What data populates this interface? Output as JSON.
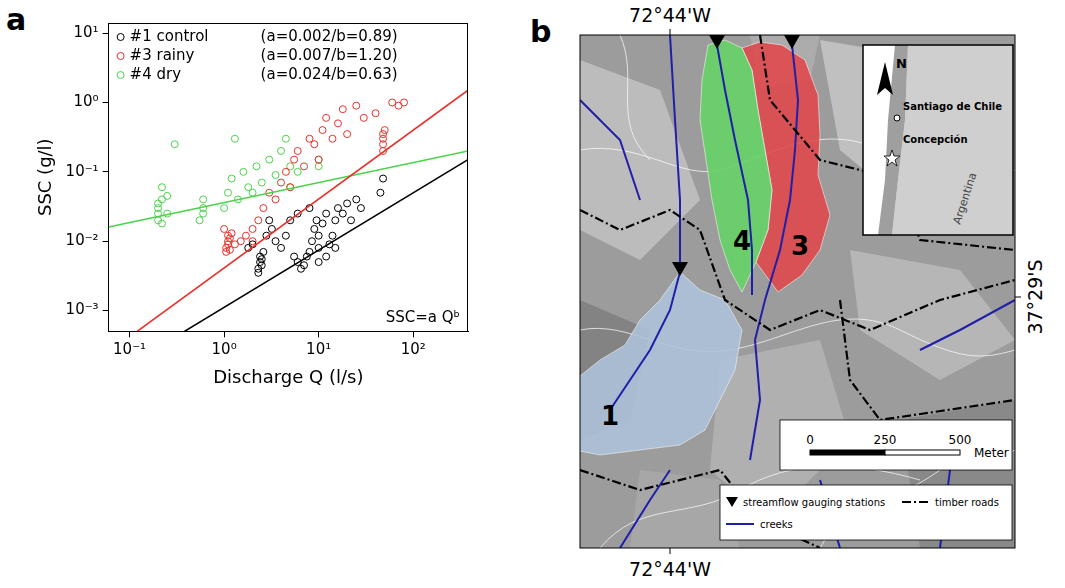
{
  "chart_data": {
    "type": "scatter",
    "panel_label": "a",
    "x_label": "Discharge Q (l/s)",
    "y_label": "SSC (g/l)",
    "log": true,
    "grid": false,
    "legend": "upper left",
    "annotation": "SSC=a Qᵇ",
    "xlim": [
      0.06,
      380
    ],
    "ylim": [
      0.0005,
      14
    ],
    "xticks": [
      {
        "value": 0.1,
        "label": "10⁻¹"
      },
      {
        "value": 1,
        "label": "10⁰"
      },
      {
        "value": 10,
        "label": "10¹"
      },
      {
        "value": 100,
        "label": "10²"
      }
    ],
    "yticks": [
      {
        "value": 0.001,
        "label": "10⁻³"
      },
      {
        "value": 0.01,
        "label": "10⁻²"
      },
      {
        "value": 0.1,
        "label": "10⁻¹"
      },
      {
        "value": 1,
        "label": "10⁰"
      },
      {
        "value": 10,
        "label": "10¹"
      }
    ],
    "series": [
      {
        "name": "#1 control",
        "fit_label": "(a=0.002/b=0.89)",
        "color": "#000000",
        "marker": "circle",
        "x": [
          2.3,
          2.4,
          2.4,
          2.5,
          2.5,
          2.6,
          2.3,
          2.0,
          2.8,
          3.2,
          3.5,
          4,
          4.5,
          5,
          5.5,
          6,
          6.5,
          7,
          7.5,
          8,
          8.5,
          9,
          9.5,
          10,
          10,
          11,
          12,
          12,
          13,
          14,
          15,
          16,
          18,
          20,
          22,
          25,
          28,
          3,
          6,
          8,
          45,
          48,
          10,
          1.8,
          15
        ],
        "values": [
          0.004,
          0.005,
          0.006,
          0.0045,
          0.0055,
          0.007,
          0.0035,
          0.009,
          0.012,
          0.015,
          0.01,
          0.008,
          0.012,
          0.02,
          0.006,
          0.005,
          0.004,
          0.0045,
          0.006,
          0.007,
          0.01,
          0.015,
          0.02,
          0.008,
          0.012,
          0.018,
          0.025,
          0.006,
          0.009,
          0.012,
          0.02,
          0.03,
          0.025,
          0.035,
          0.02,
          0.04,
          0.03,
          0.02,
          0.025,
          0.03,
          0.05,
          0.08,
          0.005,
          0.008,
          0.008
        ],
        "fit": {
          "x": [
            0.38,
            380
          ],
          "values": [
            0.0005,
            0.15
          ]
        }
      },
      {
        "name": "#3 rainy",
        "fit_label": "(a=0.007/b=1.20)",
        "color": "#e8312a",
        "marker": "circle",
        "x": [
          1.05,
          1.05,
          1.1,
          1.1,
          1.1,
          1.15,
          1.15,
          1.2,
          1.0,
          1.3,
          1.5,
          1.7,
          2,
          2,
          2.3,
          2.6,
          3,
          3.5,
          4,
          4.5,
          5,
          5.5,
          6,
          7,
          8,
          9,
          10,
          11,
          12,
          14,
          16,
          18,
          20,
          25,
          30,
          40,
          48,
          48,
          48,
          48,
          50,
          60,
          80,
          70
        ],
        "values": [
          0.007,
          0.008,
          0.009,
          0.01,
          0.012,
          0.0075,
          0.011,
          0.013,
          0.015,
          0.009,
          0.01,
          0.012,
          0.015,
          0.01,
          0.02,
          0.03,
          0.05,
          0.04,
          0.07,
          0.1,
          0.06,
          0.15,
          0.2,
          0.12,
          0.3,
          0.25,
          0.15,
          0.4,
          0.6,
          0.3,
          0.5,
          0.8,
          0.35,
          0.9,
          0.6,
          0.7,
          0.2,
          0.25,
          0.3,
          0.35,
          0.4,
          1.0,
          1.0,
          0.9
        ],
        "fit": {
          "x": [
            0.12,
            380
          ],
          "values": [
            0.0005,
            1.5
          ]
        }
      },
      {
        "name": "#4 dry",
        "fit_label": "(a=0.024/b=0.63)",
        "color": "#4cd24c",
        "marker": "circle",
        "x": [
          0.2,
          0.2,
          0.2,
          0.2,
          0.22,
          0.22,
          0.22,
          0.25,
          0.25,
          0.3,
          0.55,
          0.6,
          0.6,
          0.6,
          1.0,
          1.1,
          1.2,
          1.4,
          1.6,
          1.8,
          2,
          2.2,
          2.5,
          3,
          3.5,
          4,
          4.5,
          5,
          5,
          6,
          10,
          10,
          1.3
        ],
        "values": [
          0.02,
          0.025,
          0.03,
          0.035,
          0.04,
          0.018,
          0.06,
          0.025,
          0.045,
          0.25,
          0.02,
          0.03,
          0.04,
          0.025,
          0.03,
          0.05,
          0.08,
          0.04,
          0.1,
          0.06,
          0.05,
          0.12,
          0.07,
          0.15,
          0.09,
          0.2,
          0.3,
          0.12,
          0.06,
          0.1,
          0.12,
          0.15,
          0.3
        ],
        "fit": {
          "x": [
            0.06,
            380
          ],
          "values": [
            0.016,
            0.2
          ]
        }
      }
    ]
  },
  "map": {
    "panel_label": "b",
    "lon_label": "72°44'W",
    "lat_label": "37°29'S",
    "catchments": [
      {
        "label": "1",
        "color": "#aec3dc"
      },
      {
        "label": "3",
        "color": "#e0474c"
      },
      {
        "label": "4",
        "color": "#66d466"
      }
    ],
    "inset": {
      "north": "N",
      "cities": [
        "Santiago de Chile",
        "Concepción"
      ],
      "country": "Argentina"
    },
    "scale": {
      "ticks": [
        0,
        250,
        500
      ],
      "unit": "Meter"
    },
    "legend": {
      "stations": "streamflow gauging stations",
      "roads": "timber roads",
      "creeks": "creeks"
    }
  }
}
